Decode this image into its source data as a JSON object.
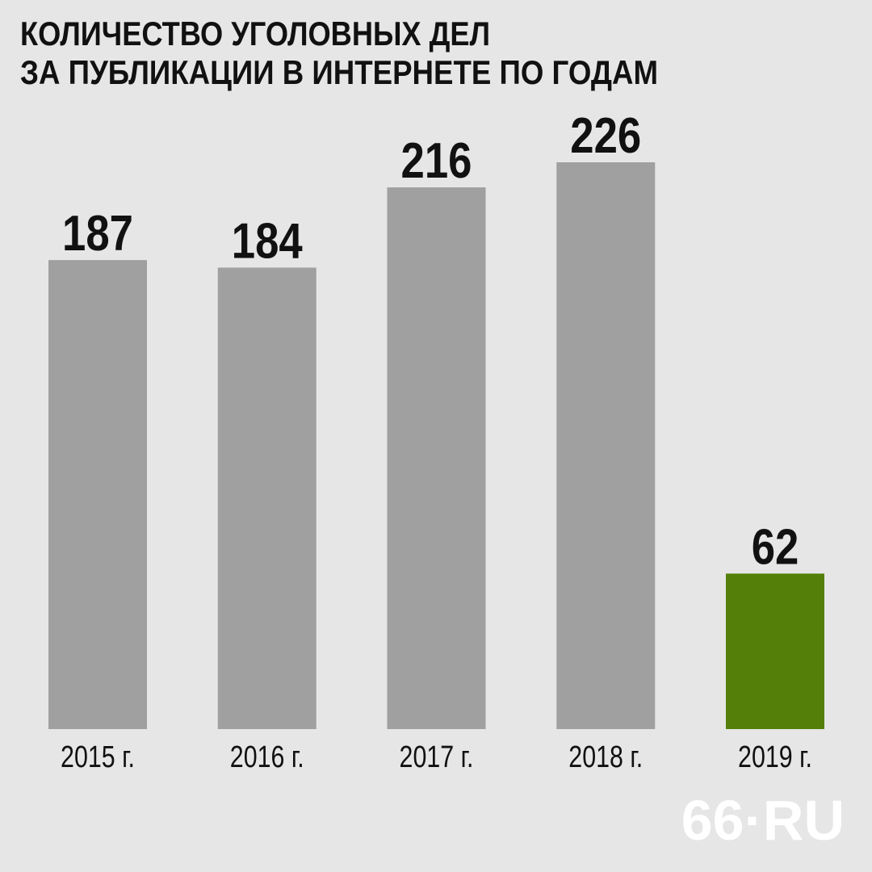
{
  "chart_data": {
    "type": "bar",
    "title": [
      "КОЛИЧЕСТВО УГОЛОВНЫХ ДЕЛ",
      "ЗА ПУБЛИКАЦИИ В ИНТЕРНЕТЕ ПО ГОДАМ"
    ],
    "categories": [
      "2015 г.",
      "2016 г.",
      "2017 г.",
      "2018 г.",
      "2019 г."
    ],
    "values": [
      187,
      184,
      216,
      226,
      62
    ],
    "colors": [
      "#a0a0a0",
      "#a0a0a0",
      "#a0a0a0",
      "#a0a0a0",
      "#548009"
    ],
    "logo": "66·RU"
  }
}
